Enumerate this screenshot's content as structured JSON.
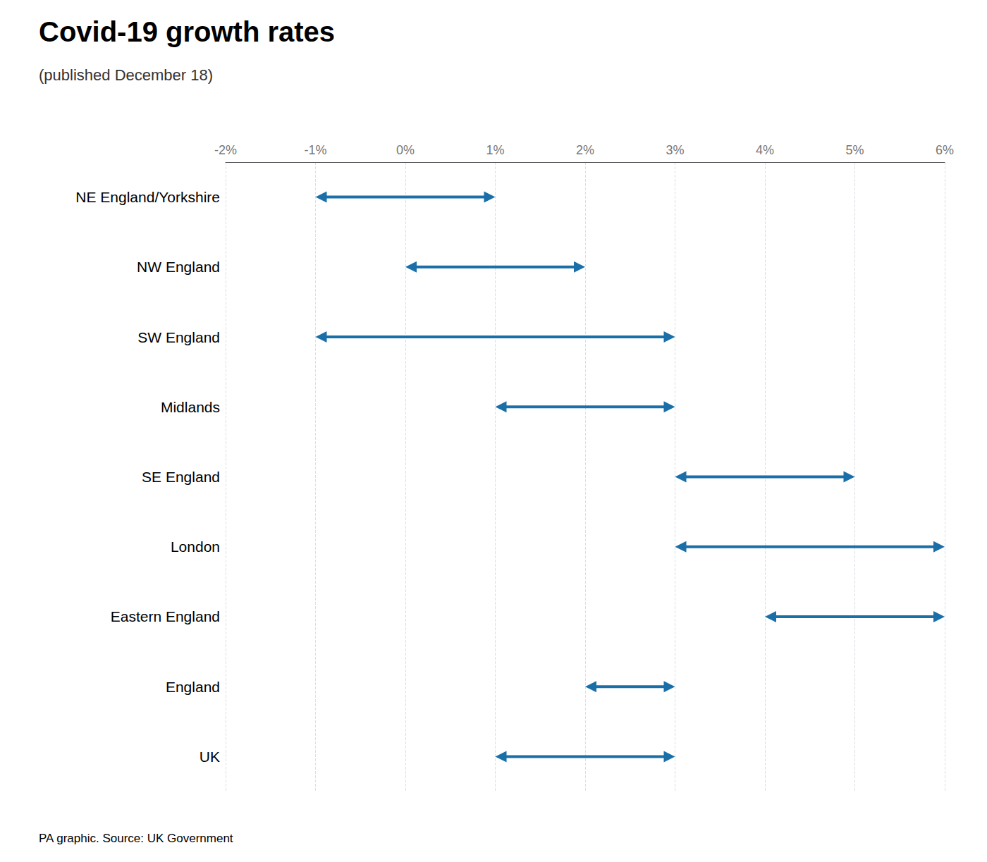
{
  "chart_data": {
    "type": "range",
    "title": "Covid-19 growth rates",
    "subtitle": "(published December 18)",
    "source": "PA graphic. Source: UK Government",
    "categories": [
      "NE England/Yorkshire",
      "NW England",
      "SW England",
      "Midlands",
      "SE England",
      "London",
      "Eastern England",
      "England",
      "UK"
    ],
    "values": [
      [
        -1,
        1
      ],
      [
        0,
        2
      ],
      [
        -1,
        3
      ],
      [
        1,
        3
      ],
      [
        3,
        5
      ],
      [
        3,
        6
      ],
      [
        4,
        6
      ],
      [
        2,
        3
      ],
      [
        1,
        3
      ]
    ],
    "color": "#1a6fa8",
    "xlim": [
      -2,
      6
    ],
    "xticks": [
      {
        "value": -2,
        "label": "-2%"
      },
      {
        "value": -1,
        "label": "-1%"
      },
      {
        "value": 0,
        "label": "0%"
      },
      {
        "value": 1,
        "label": "1%"
      },
      {
        "value": 2,
        "label": "2%"
      },
      {
        "value": 3,
        "label": "3%"
      },
      {
        "value": 4,
        "label": "4%"
      },
      {
        "value": 5,
        "label": "5%"
      },
      {
        "value": 6,
        "label": "6%"
      }
    ],
    "grid": true
  }
}
